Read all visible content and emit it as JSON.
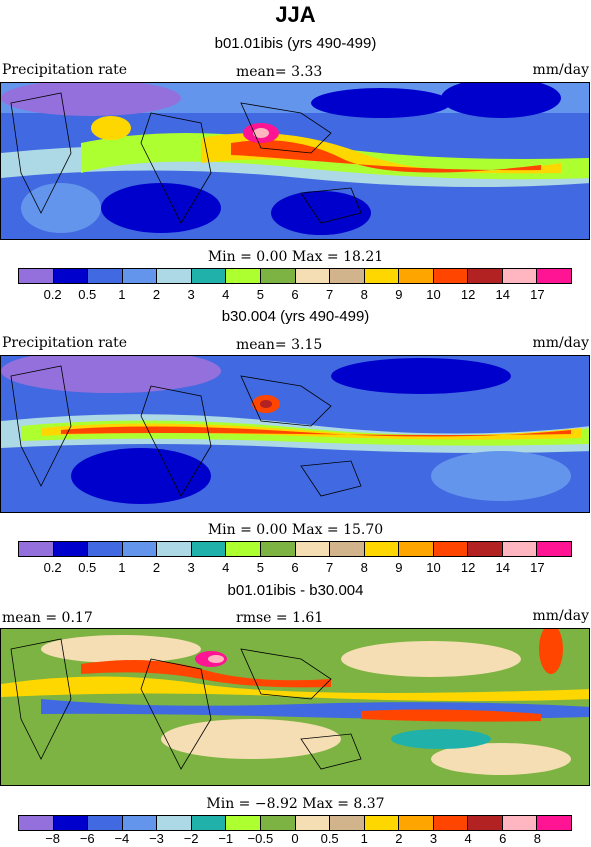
{
  "title": "JJA",
  "panels": [
    {
      "subtitle": "b01.01ibis (yrs 490-499)",
      "left_label": "Precipitation rate",
      "center_label": "mean=   3.33",
      "right_label": "mm/day",
      "minmax": "Min =   0.00 Max =   18.21",
      "colorbar": {
        "colors": [
          "#9370db",
          "#0000cd",
          "#4169e1",
          "#6495ed",
          "#add8e6",
          "#20b2aa",
          "#adff2f",
          "#7cb342",
          "#f5deb3",
          "#d2b48c",
          "#ffd700",
          "#ffa500",
          "#ff4500",
          "#b22222",
          "#ffb6c1",
          "#ff1493"
        ],
        "ticks": [
          "0.2",
          "0.5",
          "1",
          "2",
          "3",
          "4",
          "5",
          "6",
          "7",
          "8",
          "9",
          "10",
          "12",
          "14",
          "17"
        ]
      }
    },
    {
      "subtitle": "b30.004 (yrs 490-499)",
      "left_label": "Precipitation rate",
      "center_label": "mean=   3.15",
      "right_label": "mm/day",
      "minmax": "Min =   0.00 Max =   15.70",
      "colorbar": {
        "colors": [
          "#9370db",
          "#0000cd",
          "#4169e1",
          "#6495ed",
          "#add8e6",
          "#20b2aa",
          "#adff2f",
          "#7cb342",
          "#f5deb3",
          "#d2b48c",
          "#ffd700",
          "#ffa500",
          "#ff4500",
          "#b22222",
          "#ffb6c1",
          "#ff1493"
        ],
        "ticks": [
          "0.2",
          "0.5",
          "1",
          "2",
          "3",
          "4",
          "5",
          "6",
          "7",
          "8",
          "9",
          "10",
          "12",
          "14",
          "17"
        ]
      }
    },
    {
      "subtitle": "b01.01ibis - b30.004",
      "left_label": "mean =    0.17",
      "center_label": "rmse =    1.61",
      "right_label": "mm/day",
      "minmax": "Min =  −8.92 Max =   8.37",
      "colorbar": {
        "colors": [
          "#9370db",
          "#0000cd",
          "#4169e1",
          "#6495ed",
          "#add8e6",
          "#20b2aa",
          "#adff2f",
          "#7cb342",
          "#f5deb3",
          "#d2b48c",
          "#ffd700",
          "#ffa500",
          "#ff4500",
          "#b22222",
          "#ffb6c1",
          "#ff1493"
        ],
        "ticks": [
          "−8",
          "−6",
          "−4",
          "−3",
          "−2",
          "−1",
          "−0.5",
          "0",
          "0.5",
          "1",
          "2",
          "3",
          "4",
          "6",
          "8"
        ]
      }
    }
  ],
  "chart_data": {
    "type": "heatmap",
    "title": "JJA",
    "units": "mm/day"
  }
}
